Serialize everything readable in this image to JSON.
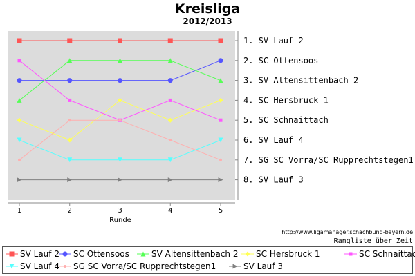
{
  "title": "Kreisliga",
  "subtitle": "2012/2013",
  "source": "http://www.ligamanager.schachbund-bayern.de",
  "caption": "Rangliste über Zeit",
  "chart_data": {
    "type": "line",
    "xlabel": "Runde",
    "x": [
      1,
      2,
      3,
      4,
      5
    ],
    "ylim": [
      1,
      8
    ],
    "y_inverted": true,
    "grid": false,
    "right_labels": [
      "1. SV Lauf 2",
      "2. SC Ottensoos",
      "3. SV Altensittenbach 2",
      "4. SC Hersbruck 1",
      "5. SC Schnaittach",
      "6. SV Lauf 4",
      "7. SG SC Vorra/SC Rupprechtstegen1",
      "8. SV Lauf 3"
    ],
    "legend_position": "bottom",
    "series": [
      {
        "name": "SV Lauf 2",
        "values": [
          1,
          1,
          1,
          1,
          1
        ],
        "color": "#ff5555",
        "marker": "square"
      },
      {
        "name": "SC Ottensoos",
        "values": [
          3,
          3,
          3,
          3,
          2
        ],
        "color": "#5555ff",
        "marker": "circle"
      },
      {
        "name": "SV Altensittenbach 2",
        "values": [
          4,
          2,
          2,
          2,
          3
        ],
        "color": "#55ff55",
        "marker": "triangle-up"
      },
      {
        "name": "SC Hersbruck 1",
        "values": [
          5,
          6,
          4,
          5,
          4
        ],
        "color": "#ffff55",
        "marker": "diamond"
      },
      {
        "name": "SC Schnaittach",
        "values": [
          2,
          4,
          5,
          4,
          5
        ],
        "color": "#ff55ff",
        "marker": "square-small"
      },
      {
        "name": "SV Lauf 4",
        "values": [
          6,
          7,
          7,
          7,
          6
        ],
        "color": "#55ffff",
        "marker": "triangle-down"
      },
      {
        "name": "SG SC Vorra/SC Rupprechtstegen1",
        "values": [
          7,
          5,
          5,
          6,
          7
        ],
        "color": "#ffafaf",
        "marker": "circle-small"
      },
      {
        "name": "SV Lauf 3",
        "values": [
          8,
          8,
          8,
          8,
          8
        ],
        "color": "#808080",
        "marker": "triangle-right"
      }
    ]
  }
}
